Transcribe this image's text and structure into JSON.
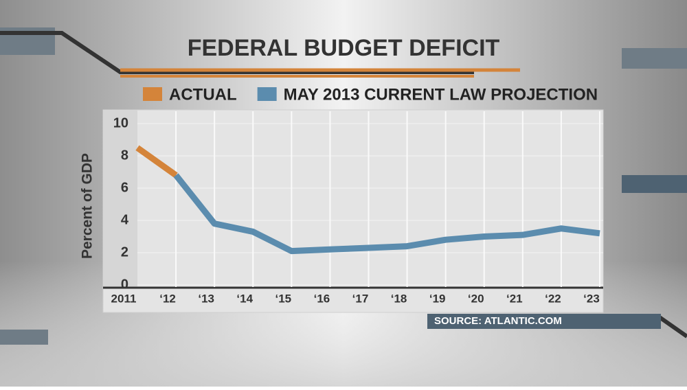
{
  "chart_data": {
    "type": "line",
    "title": "FEDERAL BUDGET DEFICIT",
    "y_label": "Percent of GDP",
    "source": "SOURCE: ATLANTIC.COM",
    "categories": [
      "2011",
      "‘12",
      "‘13",
      "‘14",
      "‘15",
      "‘16",
      "‘17",
      "‘18",
      "‘19",
      "‘20",
      "‘21",
      "‘22",
      "‘23"
    ],
    "series": [
      {
        "name": "ACTUAL",
        "color": "#d4843a",
        "values": [
          8.5,
          6.8,
          null,
          null,
          null,
          null,
          null,
          null,
          null,
          null,
          null,
          null,
          null
        ]
      },
      {
        "name": "MAY 2013 CURRENT LAW PROJECTION",
        "color": "#5b8cae",
        "values": [
          null,
          6.8,
          3.8,
          3.3,
          2.1,
          2.2,
          2.3,
          2.4,
          2.8,
          3.0,
          3.1,
          3.5,
          3.2
        ]
      }
    ],
    "ylim": [
      0,
      10
    ],
    "yticks": [
      0,
      2,
      4,
      6,
      8,
      10
    ],
    "grid": true
  }
}
